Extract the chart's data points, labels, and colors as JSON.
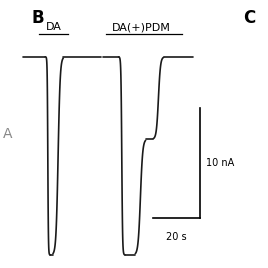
{
  "bg_color": "#ffffff",
  "panel_label_B": "B",
  "panel_label_C": "C",
  "panel_label_A": "A",
  "label_DA": "DA",
  "label_DA_PDM": "DA(+)PDM",
  "scale_bar_nA": "10 nA",
  "scale_bar_s": "20 s",
  "trace_color": "#1a1a1a",
  "trace_lw": 1.2
}
